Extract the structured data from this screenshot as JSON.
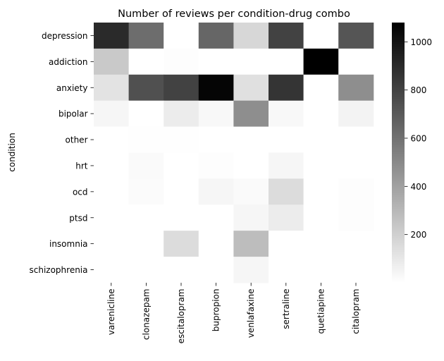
{
  "chart_data": {
    "type": "heatmap",
    "title": "Number of reviews per condition-drug combo",
    "ylabel": "condition",
    "xlabel": "",
    "rows": [
      "depression",
      "addiction",
      "anxiety",
      "bipolar",
      "other",
      "hrt",
      "ocd",
      "ptsd",
      "insomnia",
      "schizophrenia"
    ],
    "columns": [
      "varenicline",
      "clonazepam",
      "escitalopram",
      "bupropion",
      "venlafaxine",
      "sertraline",
      "quetiapine",
      "citalopram"
    ],
    "values": [
      [
        900,
        620,
        0,
        650,
        170,
        800,
        0,
        720
      ],
      [
        230,
        0,
        10,
        0,
        0,
        0,
        1080,
        0
      ],
      [
        120,
        740,
        800,
        1060,
        130,
        860,
        0,
        480
      ],
      [
        40,
        0,
        80,
        30,
        480,
        30,
        0,
        50
      ],
      [
        0,
        5,
        5,
        0,
        0,
        0,
        0,
        0
      ],
      [
        0,
        20,
        0,
        10,
        0,
        40,
        0,
        0
      ],
      [
        0,
        15,
        0,
        40,
        20,
        150,
        0,
        10
      ],
      [
        0,
        0,
        0,
        0,
        40,
        80,
        0,
        10
      ],
      [
        0,
        0,
        150,
        0,
        280,
        0,
        0,
        0
      ],
      [
        0,
        0,
        0,
        0,
        40,
        0,
        0,
        0
      ]
    ],
    "colorbar": {
      "min": 0,
      "max": 1080,
      "ticks": [
        200,
        400,
        600,
        800,
        1000
      ],
      "colormap": "greys",
      "low_color": "#ffffff",
      "high_color": "#000000"
    }
  }
}
